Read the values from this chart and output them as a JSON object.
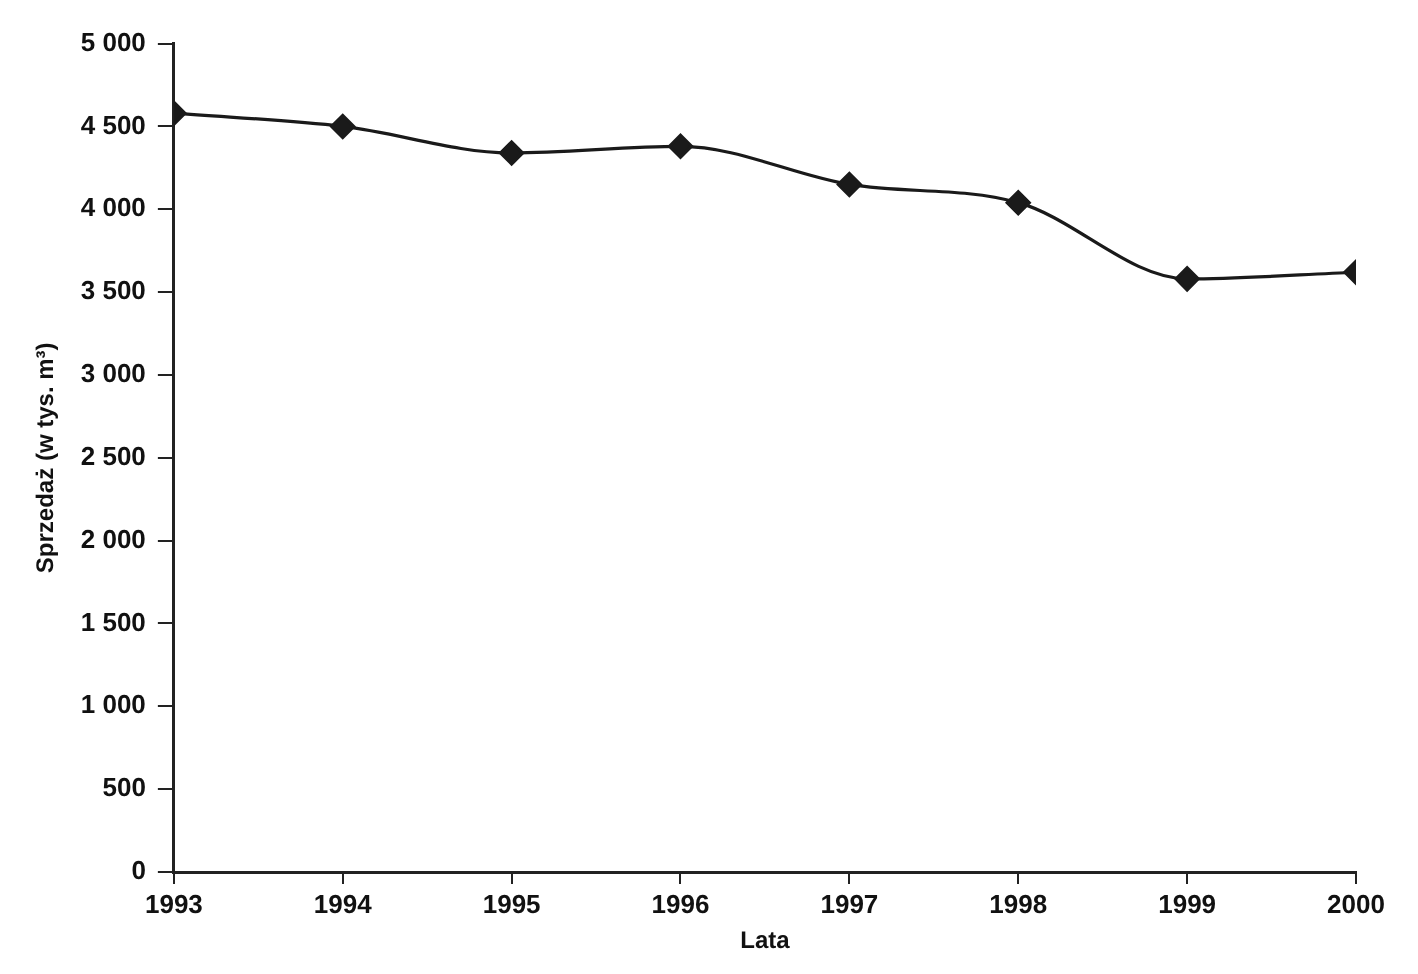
{
  "chart_data": {
    "type": "line",
    "xlabel": "Lata",
    "ylabel": "Sprzedaż (w tys. m³)",
    "x": [
      1993,
      1994,
      1995,
      1996,
      1997,
      1998,
      1999,
      2000
    ],
    "series": [
      {
        "color": "#1a1a1a",
        "values": [
          4580,
          4500,
          4340,
          4380,
          4150,
          4040,
          3580,
          3620
        ]
      }
    ],
    "xlim": [
      1993,
      2000
    ],
    "xticks": [
      1993,
      1994,
      1995,
      1996,
      1997,
      1998,
      1999,
      2000
    ],
    "ylim": [
      0,
      5000
    ],
    "yticks": [
      0,
      500,
      {
        "value": 1000,
        "label": "1 000"
      },
      {
        "value": 1500,
        "label": "1 500"
      },
      {
        "value": 2000,
        "label": "2 000"
      },
      {
        "value": 2500,
        "label": "2 500"
      },
      {
        "value": 3000,
        "label": "3 000"
      },
      {
        "value": 3500,
        "label": "3 500"
      },
      {
        "value": 4000,
        "label": "4 000"
      },
      {
        "value": 4500,
        "label": "4 500"
      },
      {
        "value": 5000,
        "label": "5 000"
      }
    ],
    "grid": false,
    "legend": false,
    "marker": "diamond",
    "line_style": "solid"
  }
}
